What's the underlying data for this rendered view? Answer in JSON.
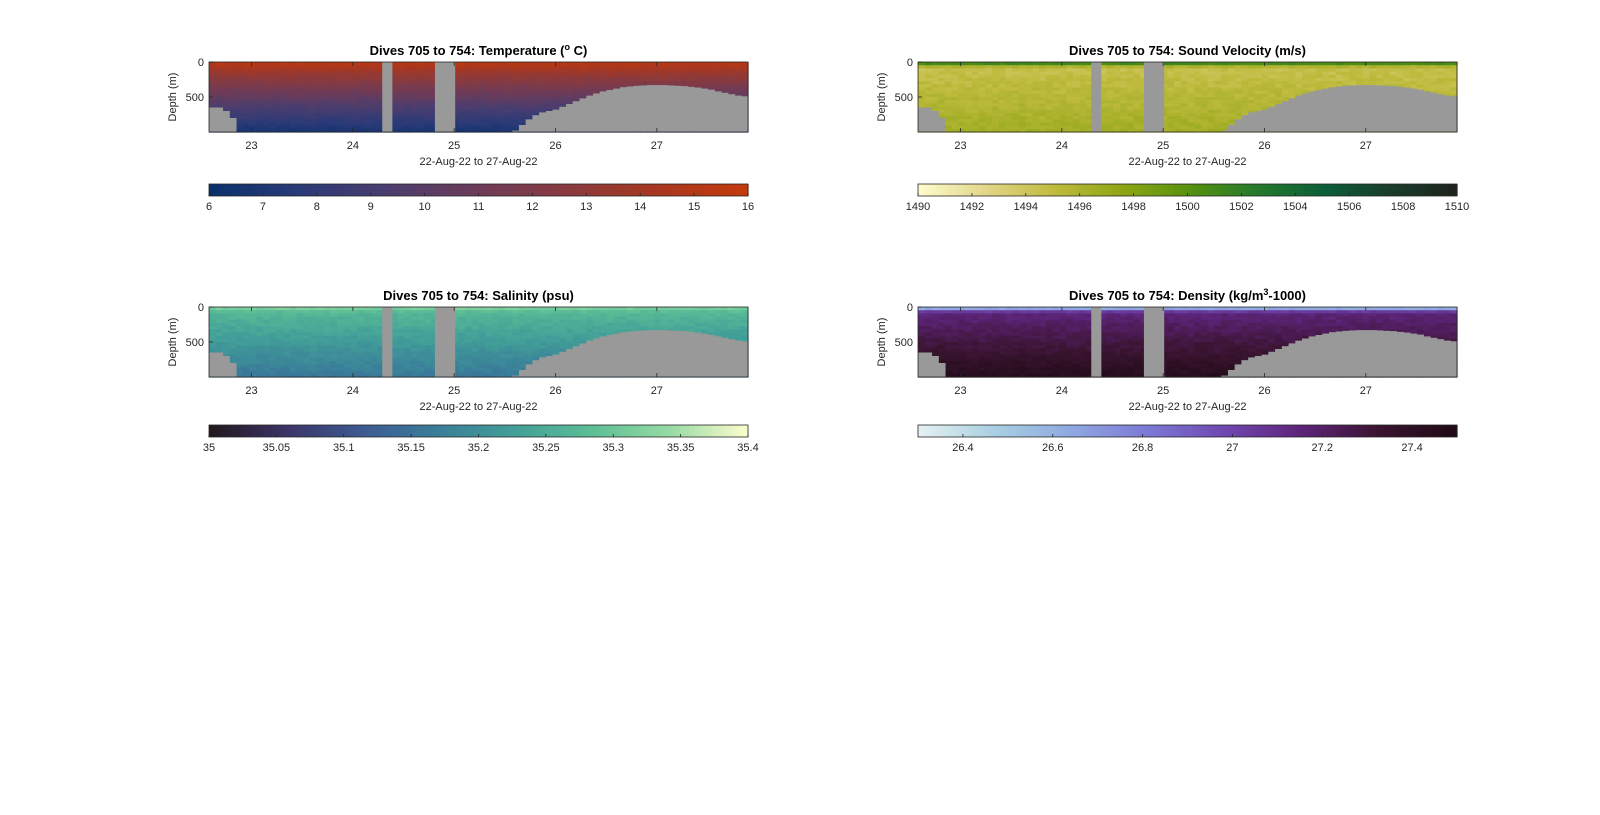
{
  "figure": {
    "background": "#ffffff",
    "mask_color": "#999999"
  },
  "chart_data": [
    {
      "id": "temperature",
      "type": "heatmap",
      "title_main": "Dives 705 to 754: Temperature (",
      "title_sup": "o",
      "title_end": " C)",
      "ylabel": "Depth (m)",
      "xlabel": "22-Aug-22 to 27-Aug-22",
      "xlim": [
        22.58,
        27.9
      ],
      "ylim": [
        1000,
        0
      ],
      "x_ticks": [
        23,
        24,
        25,
        26,
        27
      ],
      "y_ticks": [
        0,
        500
      ],
      "colorbar": {
        "clim": [
          6,
          16
        ],
        "ticks": [
          6,
          7,
          8,
          9,
          10,
          11,
          12,
          13,
          14,
          15,
          16
        ],
        "tick_labels": [
          "6",
          "7",
          "8",
          "9",
          "10",
          "11",
          "12",
          "13",
          "14",
          "15",
          "16"
        ],
        "colors": [
          "#08306b",
          "#2a3a78",
          "#4b3d6e",
          "#6d3b58",
          "#8a3a3e",
          "#a8371f",
          "#c43a0b"
        ]
      },
      "profile": {
        "surface": 15.5,
        "deep": 6.8
      },
      "max_depth": [
        650,
        650,
        700,
        800,
        1000,
        1000,
        1000,
        1000,
        1000,
        1000,
        1000,
        1000,
        1000,
        1000,
        1000,
        1000,
        1000,
        1000,
        1000,
        1000,
        1000,
        1000,
        1000,
        1000,
        1000,
        1000,
        1000,
        1000,
        1000,
        1000,
        1000,
        1000,
        1000,
        1000,
        1000,
        1000,
        1000,
        1000,
        1000,
        1000,
        1000,
        1000,
        1000,
        1000,
        1000,
        980,
        900,
        820,
        760,
        720,
        700,
        680,
        640,
        600,
        560,
        520,
        480,
        450,
        420,
        400,
        380,
        360,
        350,
        340,
        335,
        330,
        330,
        330,
        335,
        340,
        345,
        355,
        365,
        380,
        395,
        420,
        440,
        460,
        480,
        490
      ],
      "gaps": [
        [
          24.29,
          24.39
        ],
        [
          24.81,
          25.01
        ]
      ]
    },
    {
      "id": "sound-velocity",
      "type": "heatmap",
      "title_main": "Dives 705 to 754: Sound Velocity (m/s)",
      "title_sup": "",
      "title_end": "",
      "ylabel": "Depth (m)",
      "xlabel": "22-Aug-22 to 27-Aug-22",
      "xlim": [
        22.58,
        27.9
      ],
      "ylim": [
        1000,
        0
      ],
      "x_ticks": [
        23,
        24,
        25,
        26,
        27
      ],
      "y_ticks": [
        0,
        500
      ],
      "colorbar": {
        "clim": [
          1490,
          1510
        ],
        "ticks": [
          1490,
          1492,
          1494,
          1496,
          1498,
          1500,
          1502,
          1504,
          1506,
          1508,
          1510
        ],
        "tick_labels": [
          "1490",
          "1492",
          "1494",
          "1496",
          "1498",
          "1500",
          "1502",
          "1504",
          "1506",
          "1508",
          "1510"
        ],
        "colors": [
          "#fefccb",
          "#e2d68a",
          "#bfbb3e",
          "#8fa615",
          "#58920e",
          "#257a2c",
          "#0b5f38",
          "#1a3c2c",
          "#1e231c"
        ]
      },
      "profile": {
        "surface": 1503.5,
        "mid": 1494.5,
        "deep": 1496.5
      },
      "max_depth": [
        650,
        650,
        700,
        800,
        1000,
        1000,
        1000,
        1000,
        1000,
        1000,
        1000,
        1000,
        1000,
        1000,
        1000,
        1000,
        1000,
        1000,
        1000,
        1000,
        1000,
        1000,
        1000,
        1000,
        1000,
        1000,
        1000,
        1000,
        1000,
        1000,
        1000,
        1000,
        1000,
        1000,
        1000,
        1000,
        1000,
        1000,
        1000,
        1000,
        1000,
        1000,
        1000,
        1000,
        1000,
        980,
        900,
        820,
        760,
        720,
        700,
        680,
        640,
        600,
        560,
        520,
        480,
        450,
        420,
        400,
        380,
        360,
        350,
        340,
        335,
        330,
        330,
        330,
        335,
        340,
        345,
        355,
        365,
        380,
        395,
        420,
        440,
        460,
        480,
        490
      ],
      "gaps": [
        [
          24.29,
          24.39
        ],
        [
          24.81,
          25.01
        ]
      ]
    },
    {
      "id": "salinity",
      "type": "heatmap",
      "title_main": "Dives 705 to 754: Salinity (psu)",
      "title_sup": "",
      "title_end": "",
      "ylabel": "Depth (m)",
      "xlabel": "22-Aug-22 to 27-Aug-22",
      "xlim": [
        22.58,
        27.9
      ],
      "ylim": [
        1000,
        0
      ],
      "x_ticks": [
        23,
        24,
        25,
        26,
        27
      ],
      "y_ticks": [
        0,
        500
      ],
      "colorbar": {
        "clim": [
          35,
          35.4
        ],
        "ticks": [
          35,
          35.05,
          35.1,
          35.15,
          35.2,
          35.25,
          35.3,
          35.35,
          35.4
        ],
        "tick_labels": [
          "35",
          "35.05",
          "35.1",
          "35.15",
          "35.2",
          "35.25",
          "35.3",
          "35.35",
          "35.4"
        ],
        "colors": [
          "#22191e",
          "#3c3466",
          "#3c5b93",
          "#3a7f99",
          "#42a098",
          "#5dbf96",
          "#99dba4",
          "#fdfdcd"
        ]
      },
      "profile": {
        "surface": 35.33,
        "mid": 35.27,
        "deep": 35.16
      },
      "max_depth": [
        650,
        650,
        700,
        800,
        1000,
        1000,
        1000,
        1000,
        1000,
        1000,
        1000,
        1000,
        1000,
        1000,
        1000,
        1000,
        1000,
        1000,
        1000,
        1000,
        1000,
        1000,
        1000,
        1000,
        1000,
        1000,
        1000,
        1000,
        1000,
        1000,
        1000,
        1000,
        1000,
        1000,
        1000,
        1000,
        1000,
        1000,
        1000,
        1000,
        1000,
        1000,
        1000,
        1000,
        1000,
        980,
        900,
        820,
        760,
        720,
        700,
        680,
        640,
        600,
        560,
        520,
        480,
        450,
        420,
        400,
        380,
        360,
        350,
        340,
        335,
        330,
        330,
        330,
        335,
        340,
        345,
        355,
        365,
        380,
        395,
        420,
        440,
        460,
        480,
        490
      ],
      "gaps": [
        [
          24.29,
          24.39
        ],
        [
          24.81,
          25.01
        ]
      ]
    },
    {
      "id": "density",
      "type": "heatmap",
      "title_main": "Dives 705 to 754: Density (kg/m",
      "title_sup": "3",
      "title_end": "-1000)",
      "ylabel": "Depth (m)",
      "xlabel": "22-Aug-22 to 27-Aug-22",
      "xlim": [
        22.58,
        27.9
      ],
      "ylim": [
        1000,
        0
      ],
      "x_ticks": [
        23,
        24,
        25,
        26,
        27
      ],
      "y_ticks": [
        0,
        500
      ],
      "colorbar": {
        "clim": [
          26.3,
          27.5
        ],
        "ticks": [
          26.4,
          26.6,
          26.8,
          27,
          27.2,
          27.4
        ],
        "tick_labels": [
          "26.4",
          "26.6",
          "26.8",
          "27",
          "27.2",
          "27.4"
        ],
        "colors": [
          "#e6f1f1",
          "#a8cfe2",
          "#8fa8e0",
          "#7c78d6",
          "#7046b0",
          "#5c2478",
          "#3a1430",
          "#1e0a14"
        ]
      },
      "profile": {
        "surface": 26.45,
        "mid": 27.15,
        "deep": 27.45
      },
      "max_depth": [
        650,
        650,
        700,
        800,
        1000,
        1000,
        1000,
        1000,
        1000,
        1000,
        1000,
        1000,
        1000,
        1000,
        1000,
        1000,
        1000,
        1000,
        1000,
        1000,
        1000,
        1000,
        1000,
        1000,
        1000,
        1000,
        1000,
        1000,
        1000,
        1000,
        1000,
        1000,
        1000,
        1000,
        1000,
        1000,
        1000,
        1000,
        1000,
        1000,
        1000,
        1000,
        1000,
        1000,
        1000,
        980,
        900,
        820,
        760,
        720,
        700,
        680,
        640,
        600,
        560,
        520,
        480,
        450,
        420,
        400,
        380,
        360,
        350,
        340,
        335,
        330,
        330,
        330,
        335,
        340,
        345,
        355,
        365,
        380,
        395,
        420,
        440,
        460,
        480,
        490
      ],
      "gaps": [
        [
          24.29,
          24.39
        ],
        [
          24.81,
          25.01
        ]
      ]
    }
  ]
}
